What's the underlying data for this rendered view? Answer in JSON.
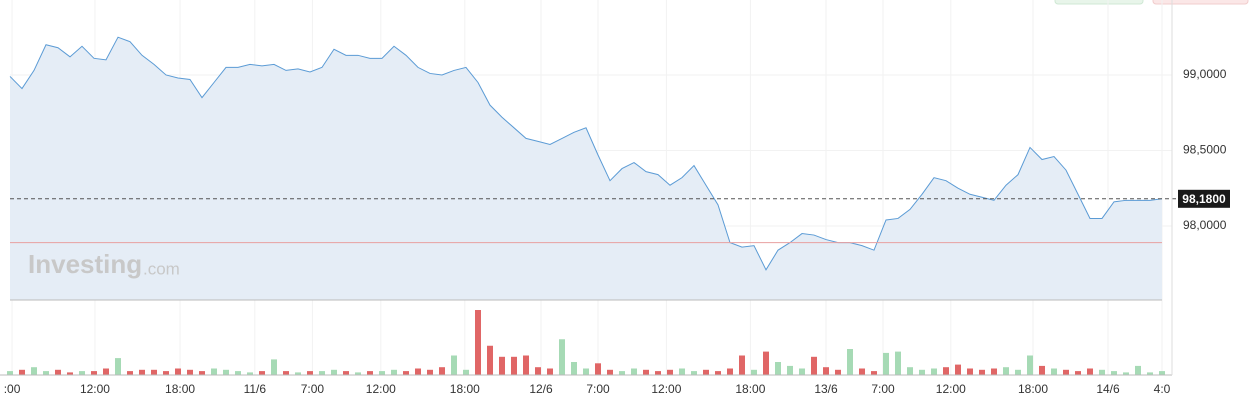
{
  "chart_data": [
    {
      "type": "line",
      "watermark": "Investing",
      "watermark_suffix": ".com",
      "x": [
        0,
        1,
        2,
        3,
        4,
        5,
        6,
        7,
        8,
        9,
        10,
        11,
        12,
        13,
        14,
        15,
        16,
        17,
        18,
        19,
        20,
        21,
        22,
        23,
        24,
        25,
        26,
        27,
        28,
        29,
        30,
        31,
        32,
        33,
        34,
        35,
        36,
        37,
        38,
        39,
        40,
        41,
        42,
        43,
        44,
        45,
        46,
        47,
        48,
        49,
        50,
        51,
        52,
        53,
        54,
        55,
        56,
        57,
        58,
        59,
        60,
        61,
        62,
        63,
        64,
        65,
        66,
        67,
        68,
        69,
        70,
        71,
        72,
        73,
        74,
        75,
        76,
        77,
        78,
        79,
        80,
        81,
        82,
        83,
        84,
        85,
        86,
        87,
        88,
        89,
        90,
        91,
        92,
        93,
        94,
        95,
        96
      ],
      "series": [
        {
          "color": "#5b9bd5",
          "fill": "#e5edf6",
          "values": [
            98.99,
            98.91,
            99.03,
            99.2,
            99.18,
            99.12,
            99.19,
            99.11,
            99.1,
            99.25,
            99.22,
            99.13,
            99.07,
            99.0,
            98.98,
            98.97,
            98.85,
            98.95,
            99.05,
            99.05,
            99.07,
            99.06,
            99.07,
            99.03,
            99.04,
            99.02,
            99.05,
            99.17,
            99.13,
            99.13,
            99.11,
            99.11,
            99.19,
            99.13,
            99.05,
            99.01,
            99.0,
            99.03,
            99.05,
            98.95,
            98.8,
            98.72,
            98.65,
            98.58,
            98.56,
            98.54,
            98.58,
            98.62,
            98.65,
            98.47,
            98.3,
            98.38,
            98.42,
            98.36,
            98.34,
            98.27,
            98.32,
            98.4,
            98.27,
            98.14,
            97.89,
            97.86,
            97.87,
            97.71,
            97.84,
            97.89,
            97.95,
            97.94,
            97.91,
            97.89,
            97.89,
            97.87,
            97.84,
            98.04,
            98.05,
            98.11,
            98.21,
            98.32,
            98.3,
            98.25,
            98.21,
            98.19,
            98.17,
            98.27,
            98.34,
            98.52,
            98.44,
            98.46,
            98.37,
            98.21,
            98.05,
            98.05,
            98.16,
            98.17,
            98.17,
            98.17,
            98.18
          ]
        }
      ],
      "last_price": {
        "value": 98.18,
        "label": "98,1800"
      },
      "reference_line": 97.89,
      "reference_color": "#e8a0a0",
      "xlim": [
        0,
        96
      ],
      "ylim": [
        97.51,
        99.43
      ],
      "yticks": [
        {
          "value": 99.0,
          "label": "99,0000"
        },
        {
          "value": 98.5,
          "label": "98,5000"
        },
        {
          "value": 98.0,
          "label": "98,0000"
        }
      ],
      "xticks": [
        {
          "value": 0.17,
          "label": ":00"
        },
        {
          "value": 7.08,
          "label": "12:00"
        },
        {
          "value": 14.17,
          "label": "18:00"
        },
        {
          "value": 20.4,
          "label": "11/6"
        },
        {
          "value": 25.2,
          "label": "7:00"
        },
        {
          "value": 30.9,
          "label": "12:00"
        },
        {
          "value": 37.9,
          "label": "18:00"
        },
        {
          "value": 44.25,
          "label": "12/6"
        },
        {
          "value": 49,
          "label": "7:00"
        },
        {
          "value": 54.7,
          "label": "12:00"
        },
        {
          "value": 61.7,
          "label": "18:00"
        },
        {
          "value": 68,
          "label": "13/6"
        },
        {
          "value": 72.75,
          "label": "7:00"
        },
        {
          "value": 78.4,
          "label": "12:00"
        },
        {
          "value": 85.25,
          "label": "18:00"
        },
        {
          "value": 91.5,
          "label": "14/6"
        },
        {
          "value": 96,
          "label": "4:0"
        }
      ],
      "grid": true
    },
    {
      "type": "bar",
      "up_color": "#a6dab5",
      "down_color": "#e06666",
      "values": [
        6,
        8,
        12,
        6,
        8,
        4,
        6,
        6,
        10,
        26,
        6,
        8,
        8,
        6,
        10,
        8,
        6,
        10,
        8,
        6,
        4,
        6,
        24,
        6,
        4,
        6,
        6,
        8,
        6,
        4,
        6,
        6,
        8,
        6,
        10,
        8,
        12,
        30,
        8,
        100,
        45,
        28,
        28,
        30,
        12,
        10,
        55,
        20,
        10,
        18,
        8,
        6,
        10,
        8,
        6,
        8,
        10,
        6,
        8,
        6,
        10,
        30,
        8,
        36,
        20,
        14,
        10,
        28,
        12,
        8,
        40,
        10,
        6,
        34,
        36,
        12,
        8,
        10,
        12,
        16,
        10,
        8,
        10,
        12,
        8,
        30,
        14,
        10,
        8,
        6,
        10,
        8,
        6,
        4,
        14,
        4,
        6
      ],
      "ylim": [
        0,
        100
      ]
    }
  ]
}
